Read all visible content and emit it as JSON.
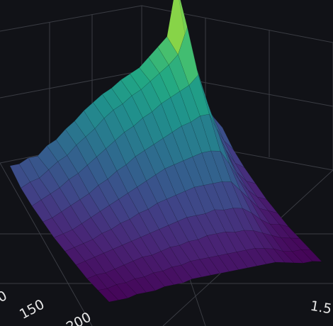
{
  "chart_data": {
    "type": "surface",
    "colorscale": "viridis",
    "background": "#111217",
    "grid_color": "#3a3c43",
    "tick_color": "#e6e6e6",
    "title": "",
    "axes": {
      "x": {
        "label": "",
        "tick_labels": [
          "0",
          "150",
          "200"
        ]
      },
      "y": {
        "label": "",
        "tick_labels": [
          "1.5"
        ]
      },
      "z": {
        "label": "",
        "tick_labels": []
      }
    },
    "rows": 10,
    "z_values": [
      [
        0.28,
        0.28,
        0.3,
        0.3,
        0.34,
        0.36,
        0.4,
        0.43,
        0.47,
        0.5,
        0.53,
        0.55,
        0.58,
        0.6,
        0.62,
        0.66,
        0.7,
        0.74,
        0.98,
        0.72,
        0.54,
        0.4,
        0.32,
        0.26
      ],
      [
        0.22,
        0.24,
        0.25,
        0.28,
        0.31,
        0.33,
        0.37,
        0.4,
        0.43,
        0.47,
        0.5,
        0.52,
        0.55,
        0.57,
        0.6,
        0.63,
        0.66,
        0.7,
        0.82,
        0.62,
        0.45,
        0.33,
        0.25,
        0.2
      ],
      [
        0.18,
        0.2,
        0.22,
        0.24,
        0.27,
        0.29,
        0.32,
        0.35,
        0.38,
        0.41,
        0.44,
        0.46,
        0.49,
        0.51,
        0.54,
        0.56,
        0.58,
        0.6,
        0.64,
        0.5,
        0.36,
        0.26,
        0.19,
        0.16
      ],
      [
        0.15,
        0.16,
        0.18,
        0.2,
        0.22,
        0.24,
        0.27,
        0.29,
        0.32,
        0.34,
        0.37,
        0.39,
        0.41,
        0.43,
        0.45,
        0.47,
        0.48,
        0.5,
        0.5,
        0.4,
        0.29,
        0.2,
        0.15,
        0.13
      ],
      [
        0.12,
        0.13,
        0.14,
        0.16,
        0.18,
        0.2,
        0.22,
        0.24,
        0.26,
        0.28,
        0.3,
        0.32,
        0.34,
        0.35,
        0.36,
        0.37,
        0.38,
        0.38,
        0.37,
        0.3,
        0.22,
        0.16,
        0.12,
        0.1
      ],
      [
        0.1,
        0.11,
        0.12,
        0.13,
        0.15,
        0.16,
        0.18,
        0.19,
        0.21,
        0.22,
        0.24,
        0.25,
        0.26,
        0.27,
        0.28,
        0.28,
        0.28,
        0.28,
        0.27,
        0.22,
        0.17,
        0.12,
        0.1,
        0.08
      ],
      [
        0.08,
        0.09,
        0.1,
        0.11,
        0.12,
        0.13,
        0.14,
        0.15,
        0.16,
        0.17,
        0.18,
        0.19,
        0.2,
        0.2,
        0.2,
        0.21,
        0.2,
        0.2,
        0.19,
        0.16,
        0.12,
        0.09,
        0.08,
        0.06
      ],
      [
        0.06,
        0.07,
        0.07,
        0.08,
        0.09,
        0.1,
        0.11,
        0.11,
        0.12,
        0.13,
        0.13,
        0.14,
        0.14,
        0.15,
        0.15,
        0.15,
        0.14,
        0.14,
        0.13,
        0.11,
        0.09,
        0.07,
        0.06,
        0.05
      ],
      [
        0.05,
        0.05,
        0.06,
        0.06,
        0.07,
        0.07,
        0.08,
        0.08,
        0.09,
        0.09,
        0.1,
        0.1,
        0.1,
        0.1,
        0.1,
        0.1,
        0.1,
        0.1,
        0.09,
        0.08,
        0.06,
        0.05,
        0.05,
        0.04
      ],
      [
        0.04,
        0.04,
        0.04,
        0.05,
        0.05,
        0.05,
        0.06,
        0.06,
        0.06,
        0.07,
        0.07,
        0.07,
        0.07,
        0.07,
        0.07,
        0.07,
        0.07,
        0.07,
        0.07,
        0.06,
        0.05,
        0.04,
        0.04,
        0.03
      ]
    ]
  }
}
